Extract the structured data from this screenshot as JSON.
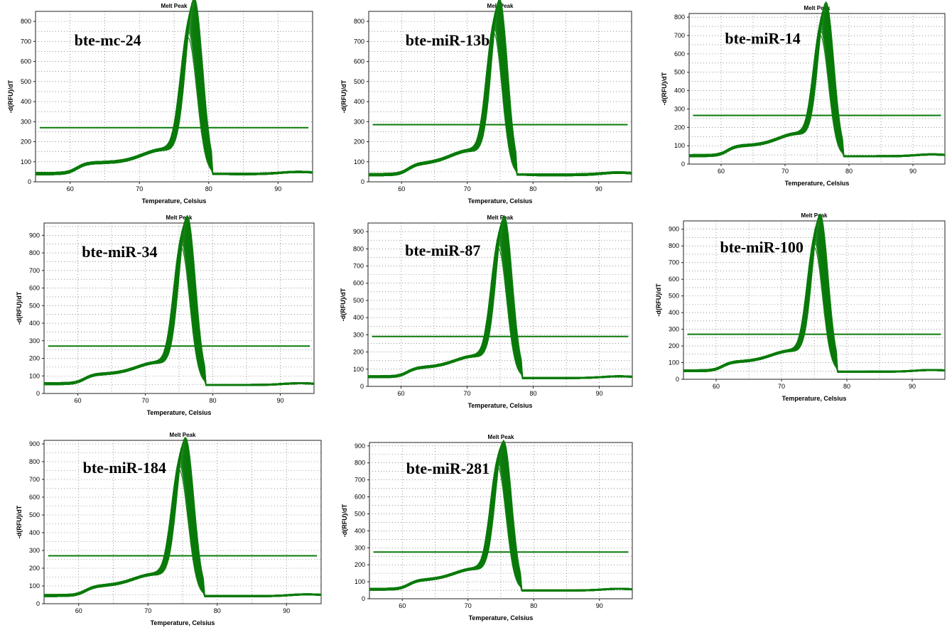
{
  "curve_color": "#0a7a0a",
  "chart_data": [
    {
      "type": "line",
      "title": "Melt Peak",
      "xlabel": "Temperature, Celsius",
      "ylabel": "-d(RFU)/dT",
      "annotation": "bte-mc-24",
      "xlim": [
        55,
        95
      ],
      "ylim": [
        0,
        850
      ],
      "xticks": [
        60,
        70,
        80,
        90
      ],
      "yticks": [
        0,
        100,
        200,
        300,
        400,
        500,
        600,
        700,
        800
      ],
      "threshold": 270,
      "peak_temp": 77.5,
      "peak_range": [
        520,
        850
      ],
      "baseline": 35,
      "grid": true
    },
    {
      "type": "line",
      "title": "Melt Peak",
      "xlabel": "Temperature, Celsius",
      "ylabel": "-d(RFU)/dT",
      "annotation": "bte-miR-13b",
      "xlim": [
        55,
        95
      ],
      "ylim": [
        0,
        850
      ],
      "xticks": [
        60,
        70,
        80,
        90
      ],
      "yticks": [
        0,
        100,
        200,
        300,
        400,
        500,
        600,
        700,
        800
      ],
      "threshold": 285,
      "peak_temp": 74.5,
      "peak_range": [
        560,
        845
      ],
      "baseline": 30,
      "grid": true
    },
    {
      "type": "line",
      "title": "Melt Peak",
      "xlabel": "Temperature, Celsius",
      "ylabel": "-d(RFU)/dT",
      "annotation": "bte-miR-14",
      "xlim": [
        55,
        95
      ],
      "ylim": [
        0,
        820
      ],
      "xticks": [
        60,
        70,
        80,
        90
      ],
      "yticks": [
        0,
        100,
        200,
        300,
        400,
        500,
        600,
        700,
        800
      ],
      "threshold": 265,
      "peak_temp": 76.0,
      "peak_range": [
        510,
        815
      ],
      "baseline": 40,
      "grid": true
    },
    {
      "type": "line",
      "title": "Melt Peak",
      "xlabel": "Temperature, Celsius",
      "ylabel": "-d(RFU)/dT",
      "annotation": "bte-miR-34",
      "xlim": [
        55,
        95
      ],
      "ylim": [
        0,
        970
      ],
      "xticks": [
        60,
        70,
        80,
        90
      ],
      "yticks": [
        0,
        100,
        200,
        300,
        400,
        500,
        600,
        700,
        800,
        900
      ],
      "threshold": 270,
      "peak_temp": 75.8,
      "peak_range": [
        640,
        945
      ],
      "baseline": 50,
      "grid": true
    },
    {
      "type": "line",
      "title": "Melt Peak",
      "xlabel": "Temperature, Celsius",
      "ylabel": "-d(RFU)/dT",
      "annotation": "bte-miR-87",
      "xlim": [
        55,
        95
      ],
      "ylim": [
        0,
        950
      ],
      "xticks": [
        60,
        70,
        80,
        90
      ],
      "yticks": [
        0,
        100,
        200,
        300,
        400,
        500,
        600,
        700,
        800,
        900
      ],
      "threshold": 290,
      "peak_temp": 75.2,
      "peak_range": [
        610,
        925
      ],
      "baseline": 50,
      "grid": true
    },
    {
      "type": "line",
      "title": "Melt Peak",
      "xlabel": "Temperature, Celsius",
      "ylabel": "-d(RFU)/dT",
      "annotation": "bte-miR-100",
      "xlim": [
        55,
        95
      ],
      "ylim": [
        0,
        950
      ],
      "xticks": [
        60,
        70,
        80,
        90
      ],
      "yticks": [
        0,
        100,
        200,
        300,
        400,
        500,
        600,
        700,
        800,
        900
      ],
      "threshold": 270,
      "peak_temp": 75.5,
      "peak_range": [
        590,
        925
      ],
      "baseline": 45,
      "grid": true
    },
    {
      "type": "line",
      "title": "Melt Peak",
      "xlabel": "Temperature, Celsius",
      "ylabel": "-d(RFU)/dT",
      "annotation": "bte-miR-184",
      "xlim": [
        55,
        95
      ],
      "ylim": [
        0,
        920
      ],
      "xticks": [
        60,
        70,
        80,
        90
      ],
      "yticks": [
        0,
        100,
        200,
        300,
        400,
        500,
        600,
        700,
        800,
        900
      ],
      "threshold": 270,
      "peak_temp": 75.0,
      "peak_range": [
        560,
        870
      ],
      "baseline": 40,
      "grid": true
    },
    {
      "type": "line",
      "title": "Melt Peak",
      "xlabel": "Temperature, Celsius",
      "ylabel": "-d(RFU)/dT",
      "annotation": "bte-miR-281",
      "xlim": [
        55,
        95
      ],
      "ylim": [
        0,
        920
      ],
      "xticks": [
        60,
        70,
        80,
        90
      ],
      "yticks": [
        0,
        100,
        200,
        300,
        400,
        500,
        600,
        700,
        800,
        900
      ],
      "threshold": 275,
      "peak_temp": 75.0,
      "peak_range": [
        600,
        865
      ],
      "baseline": 50,
      "grid": true
    }
  ]
}
